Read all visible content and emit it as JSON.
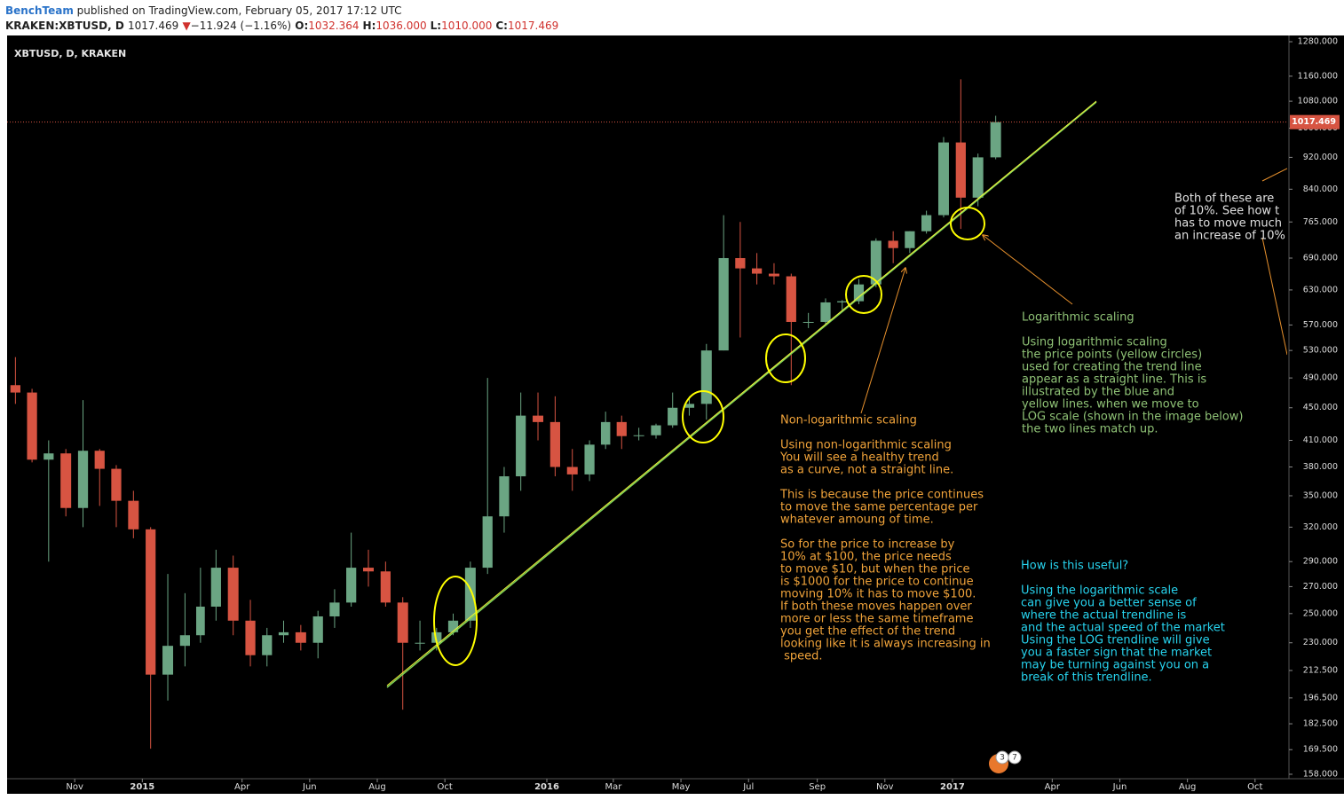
{
  "header": {
    "author": "BenchTeam",
    "published": "published on TradingView.com, February 05, 2017 17:12 UTC",
    "symbol": "KRAKEN:XBTUSD, D",
    "last": "1017.469",
    "change_arrow": "▼",
    "change": "−11.924 (−1.16%)",
    "ohlc": [
      {
        "label": "O:",
        "value": "1032.364"
      },
      {
        "label": "H:",
        "value": "1036.000"
      },
      {
        "label": "L:",
        "value": "1010.000"
      },
      {
        "label": "C:",
        "value": "1017.469"
      }
    ]
  },
  "chart_data": {
    "type": "candlestick",
    "title": "XBTUSD, D, KRAKEN",
    "x": [
      "2014-09-01",
      "2014-09-16",
      "2014-10-01",
      "2014-10-16",
      "2014-11-01",
      "2014-11-16",
      "2014-12-01",
      "2014-12-16",
      "2015-01-01",
      "2015-01-16",
      "2015-02-01",
      "2015-02-16",
      "2015-03-01",
      "2015-03-16",
      "2015-04-01",
      "2015-04-16",
      "2015-05-01",
      "2015-05-16",
      "2015-06-01",
      "2015-06-16",
      "2015-07-01",
      "2015-07-16",
      "2015-08-01",
      "2015-08-16",
      "2015-09-01",
      "2015-09-16",
      "2015-10-01",
      "2015-10-16",
      "2015-11-01",
      "2015-11-16",
      "2015-12-01",
      "2015-12-16",
      "2016-01-01",
      "2016-01-16",
      "2016-02-01",
      "2016-02-16",
      "2016-03-01",
      "2016-03-16",
      "2016-04-01",
      "2016-04-16",
      "2016-05-01",
      "2016-05-16",
      "2016-06-01",
      "2016-06-16",
      "2016-07-01",
      "2016-07-16",
      "2016-08-01",
      "2016-08-16",
      "2016-09-01",
      "2016-09-16",
      "2016-10-01",
      "2016-10-16",
      "2016-11-01",
      "2016-11-16",
      "2016-12-01",
      "2016-12-16",
      "2017-01-01",
      "2017-01-16",
      "2017-02-01"
    ],
    "open": [
      480,
      470,
      388,
      395,
      338,
      398,
      378,
      345,
      318,
      210,
      228,
      235,
      255,
      285,
      245,
      222,
      235,
      237,
      230,
      248,
      258,
      285,
      282,
      258,
      230,
      230,
      237,
      245,
      285,
      330,
      370,
      440,
      432,
      380,
      372,
      405,
      432,
      415,
      416,
      428,
      450,
      455,
      530,
      690,
      670,
      660,
      655,
      575,
      575,
      608,
      610,
      640,
      725,
      710,
      745,
      780,
      960,
      820,
      920
    ],
    "high": [
      520,
      475,
      410,
      400,
      460,
      400,
      382,
      355,
      320,
      280,
      265,
      285,
      300,
      295,
      260,
      240,
      245,
      242,
      252,
      268,
      315,
      300,
      290,
      262,
      245,
      240,
      250,
      290,
      490,
      380,
      470,
      470,
      465,
      400,
      410,
      445,
      440,
      425,
      430,
      470,
      465,
      540,
      780,
      765,
      700,
      680,
      660,
      590,
      615,
      612,
      650,
      730,
      745,
      745,
      790,
      975,
      1150,
      930,
      1036
    ],
    "low": [
      455,
      385,
      290,
      330,
      320,
      340,
      320,
      310,
      170,
      195,
      215,
      230,
      245,
      235,
      215,
      215,
      230,
      225,
      220,
      240,
      255,
      270,
      255,
      190,
      225,
      225,
      235,
      240,
      280,
      315,
      355,
      410,
      370,
      355,
      365,
      400,
      400,
      410,
      412,
      425,
      440,
      435,
      530,
      550,
      640,
      640,
      480,
      565,
      570,
      595,
      605,
      635,
      680,
      700,
      740,
      775,
      750,
      800,
      915
    ],
    "close": [
      470,
      388,
      395,
      338,
      398,
      378,
      345,
      318,
      210,
      228,
      235,
      255,
      285,
      245,
      222,
      235,
      237,
      230,
      248,
      258,
      285,
      282,
      258,
      230,
      230,
      237,
      245,
      285,
      330,
      370,
      440,
      432,
      380,
      372,
      405,
      432,
      415,
      416,
      428,
      450,
      455,
      530,
      690,
      670,
      660,
      655,
      575,
      575,
      608,
      610,
      640,
      725,
      710,
      745,
      780,
      960,
      820,
      920,
      1017.469
    ],
    "up_color": "#6ba583",
    "down_color": "#d75442",
    "log_scale": true,
    "grid": false,
    "ylim": [
      156,
      1303
    ],
    "yticks": [
      {
        "value": 158,
        "label": "158.000"
      },
      {
        "value": 169.5,
        "label": "169.500"
      },
      {
        "value": 182.5,
        "label": "182.500"
      },
      {
        "value": 196.5,
        "label": "196.500"
      },
      {
        "value": 212.5,
        "label": "212.500"
      },
      {
        "value": 230,
        "label": "230.000"
      },
      {
        "value": 250,
        "label": "250.000"
      },
      {
        "value": 270,
        "label": "270.000"
      },
      {
        "value": 290,
        "label": "290.000"
      },
      {
        "value": 320,
        "label": "320.000"
      },
      {
        "value": 350,
        "label": "350.000"
      },
      {
        "value": 380,
        "label": "380.000"
      },
      {
        "value": 410,
        "label": "410.000"
      },
      {
        "value": 450,
        "label": "450.000"
      },
      {
        "value": 490,
        "label": "490.000"
      },
      {
        "value": 530,
        "label": "530.000"
      },
      {
        "value": 570,
        "label": "570.000"
      },
      {
        "value": 630,
        "label": "630.000"
      },
      {
        "value": 690,
        "label": "690.000"
      },
      {
        "value": 765,
        "label": "765.000"
      },
      {
        "value": 840,
        "label": "840.000"
      },
      {
        "value": 920,
        "label": "920.000"
      },
      {
        "value": 1000,
        "label": "1000.000"
      },
      {
        "value": 1080,
        "label": "1080.000"
      },
      {
        "value": 1160,
        "label": "1160.000"
      },
      {
        "value": 1280,
        "label": "1280.000"
      }
    ],
    "xlim": [
      "2014-09-01",
      "2017-10-30"
    ],
    "xticks": [
      {
        "value": "2014-11-01",
        "label": "Nov"
      },
      {
        "value": "2015-01-01",
        "label": "2015"
      },
      {
        "value": "2015-04-01",
        "label": "Apr"
      },
      {
        "value": "2015-06-01",
        "label": "Jun"
      },
      {
        "value": "2015-08-01",
        "label": "Aug"
      },
      {
        "value": "2015-10-01",
        "label": "Oct"
      },
      {
        "value": "2016-01-01",
        "label": "2016"
      },
      {
        "value": "2016-03-01",
        "label": "Mar"
      },
      {
        "value": "2016-05-01",
        "label": "May"
      },
      {
        "value": "2016-07-01",
        "label": "Jul"
      },
      {
        "value": "2016-09-01",
        "label": "Sep"
      },
      {
        "value": "2016-11-01",
        "label": "Nov"
      },
      {
        "value": "2017-01-01",
        "label": "2017"
      },
      {
        "value": "2017-04-01",
        "label": "Apr"
      },
      {
        "value": "2017-06-01",
        "label": "Jun"
      },
      {
        "value": "2017-08-01",
        "label": "Aug"
      },
      {
        "value": "2017-10-01",
        "label": "Oct"
      }
    ],
    "last_price": 1017.469,
    "last_price_color": "#d75442",
    "annotations": [
      {
        "color": "#f0a33a",
        "paragraphs": [
          [
            "Non-logarithmic scaling"
          ],
          [
            "Using non-logarithmic scaling",
            "You will see a healthy trend",
            "as a curve, not a straight line."
          ],
          [
            "This is because the price continues",
            "to move the same percentage per",
            "whatever amoung of time."
          ],
          [
            "So for the price to increase by",
            "10% at $100, the price needs",
            "to move $10, but when the price",
            "is $1000 for the price to continue",
            "moving 10% it has to move $100.",
            "If both these moves happen over",
            "more or less the same timeframe",
            "you get the effect of the trend",
            "looking like it is always increasing in",
            " speed."
          ]
        ]
      },
      {
        "color": "#8fc276",
        "paragraphs": [
          [
            "Logarithmic scaling"
          ],
          [
            "Using logarithmic scaling",
            "the price points (yellow circles)",
            "used for creating the trend line",
            "appear as a straight line. This is",
            "illustrated by the blue and",
            "yellow lines. when we move to",
            "LOG scale (shown in the image below)",
            "the two lines match up."
          ]
        ]
      },
      {
        "color": "#27d3ee",
        "paragraphs": [
          [
            "How is this useful?"
          ],
          [
            "Using the logarithmic scale",
            "can give you a better sense of",
            "where the actual trendline is",
            "and the actual speed of the market",
            "Using the LOG trendline will give",
            "you a faster sign that the market",
            "may be turning against you on a",
            "break of this trendline."
          ]
        ]
      },
      {
        "color": "#e0e0e0",
        "paragraphs": [
          [
            "Both of these are",
            "of 10%. See how t",
            "has to move much",
            "an increase of 10%"
          ]
        ]
      }
    ]
  },
  "badge": [
    "3",
    "7"
  ]
}
